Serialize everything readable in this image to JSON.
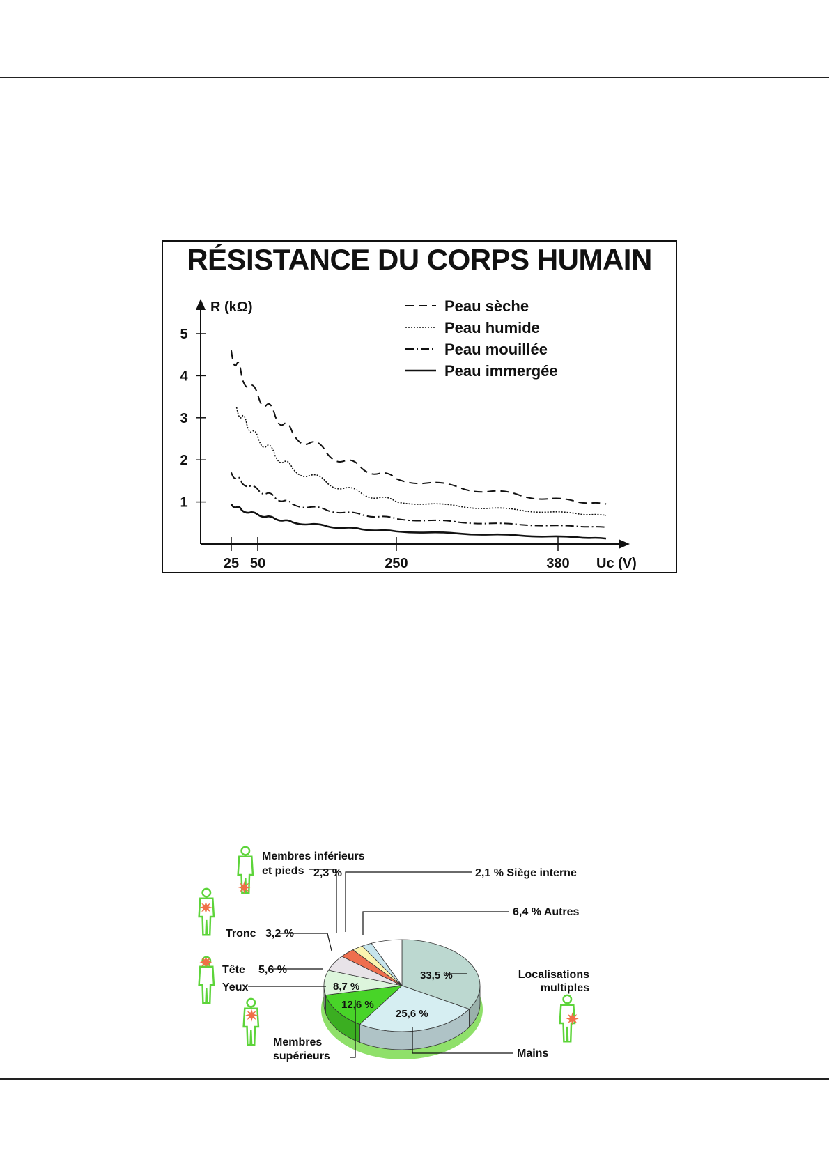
{
  "chart_data": [
    {
      "type": "line",
      "title": "RÉSISTANCE DU CORPS HUMAIN",
      "ylabel": "R (kΩ)",
      "xlabel": "Uc (V)",
      "ylim": [
        0,
        5
      ],
      "yticks": [
        1,
        2,
        3,
        4,
        5
      ],
      "xticks": [
        25,
        50,
        250,
        380
      ],
      "legend_position": "top-right",
      "series": [
        {
          "name": "Peau sèche",
          "style": "dashed",
          "x": [
            25,
            35,
            50,
            75,
            100,
            150,
            200,
            250,
            300,
            350,
            400,
            430
          ],
          "y": [
            4.6,
            3.95,
            3.55,
            3.05,
            2.65,
            2.15,
            1.8,
            1.55,
            1.35,
            1.15,
            1.0,
            0.95
          ]
        },
        {
          "name": "Peau humide",
          "style": "dotted",
          "x": [
            30,
            40,
            50,
            75,
            100,
            150,
            200,
            250,
            300,
            350,
            400,
            430
          ],
          "y": [
            3.25,
            2.8,
            2.55,
            2.1,
            1.8,
            1.45,
            1.2,
            1.0,
            0.9,
            0.8,
            0.72,
            0.68
          ]
        },
        {
          "name": "Peau mouillée",
          "style": "dashdot",
          "x": [
            25,
            35,
            50,
            75,
            100,
            150,
            200,
            250,
            300,
            350,
            400,
            430
          ],
          "y": [
            1.7,
            1.45,
            1.3,
            1.1,
            0.95,
            0.8,
            0.7,
            0.6,
            0.52,
            0.46,
            0.42,
            0.4
          ]
        },
        {
          "name": "Peau immergée",
          "style": "solid",
          "x": [
            25,
            35,
            50,
            75,
            100,
            150,
            200,
            250,
            300,
            350,
            400,
            430
          ],
          "y": [
            0.95,
            0.8,
            0.7,
            0.6,
            0.52,
            0.42,
            0.35,
            0.3,
            0.25,
            0.2,
            0.16,
            0.13
          ]
        }
      ]
    },
    {
      "type": "pie",
      "slices": [
        {
          "label": "Localisations multiples",
          "value": 33.5,
          "value_text": "33,5 %",
          "color": "#bcd8d0"
        },
        {
          "label": "Mains",
          "value": 25.6,
          "value_text": "25,6 %",
          "color": "#d6eef2"
        },
        {
          "label": "Membres supérieurs",
          "value": 12.6,
          "value_text": "12,6 %",
          "color": "#48d428"
        },
        {
          "label": "Yeux",
          "value": 8.7,
          "value_text": "8,7 %",
          "color": "#ddf5dc"
        },
        {
          "label": "Tête",
          "value": 5.6,
          "value_text": "5,6 %",
          "color": "#e8e3e8"
        },
        {
          "label": "Tronc",
          "value": 3.2,
          "value_text": "3,2 %",
          "color": "#ee6e4e"
        },
        {
          "label": "Membres inférieurs et pieds",
          "value": 2.3,
          "value_text": "2,3 %",
          "color": "#fbf4b0"
        },
        {
          "label": "Siège interne",
          "value": 2.1,
          "value_text": "2,1 %",
          "color": "#c6e4ec"
        },
        {
          "label": "Autres",
          "value": 6.4,
          "value_text": "6,4 %",
          "color": "#ffffff"
        }
      ],
      "callouts": {
        "membres_inf_1": "Membres inférieurs",
        "membres_inf_2": "et pieds",
        "membres_inf_val": "2,3 %",
        "siege": "2,1 %  Siège interne",
        "autres": "6,4 %  Autres",
        "tronc": "Tronc",
        "tronc_val": "3,2 %",
        "tete": "Tête",
        "tete_val": "5,6 %",
        "yeux": "Yeux",
        "loc1": "Localisations",
        "loc2": "multiples",
        "mains": "Mains",
        "membres_sup_1": "Membres",
        "membres_sup_2": "supérieurs"
      }
    }
  ]
}
